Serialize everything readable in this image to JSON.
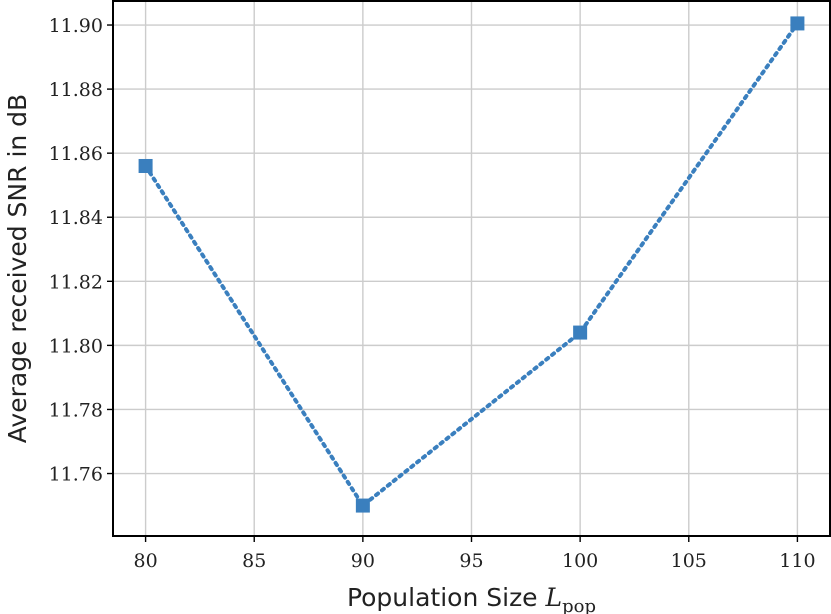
{
  "chart_data": {
    "type": "line",
    "x": [
      80,
      90,
      100,
      110
    ],
    "series": [
      {
        "values": [
          11.856,
          11.75,
          11.804,
          11.9005
        ]
      }
    ],
    "xlabel": "Population Size",
    "xlabel_symbol": "L",
    "xlabel_subscript": "pop",
    "ylabel": "Average received SNR in dB",
    "xlim": [
      78.5,
      111.5
    ],
    "ylim": [
      11.7405,
      11.9075
    ],
    "xticks": [
      80,
      85,
      90,
      95,
      100,
      105,
      110
    ],
    "xtick_labels": [
      "80",
      "85",
      "90",
      "95",
      "100",
      "105",
      "110"
    ],
    "yticks": [
      11.76,
      11.78,
      11.8,
      11.82,
      11.84,
      11.86,
      11.88,
      11.9
    ],
    "ytick_labels": [
      "11.76",
      "11.78",
      "11.80",
      "11.82",
      "11.84",
      "11.86",
      "11.88",
      "11.90"
    ],
    "grid": true,
    "marker": "square",
    "line_style": "dotted",
    "color": "#3a7fbe"
  }
}
